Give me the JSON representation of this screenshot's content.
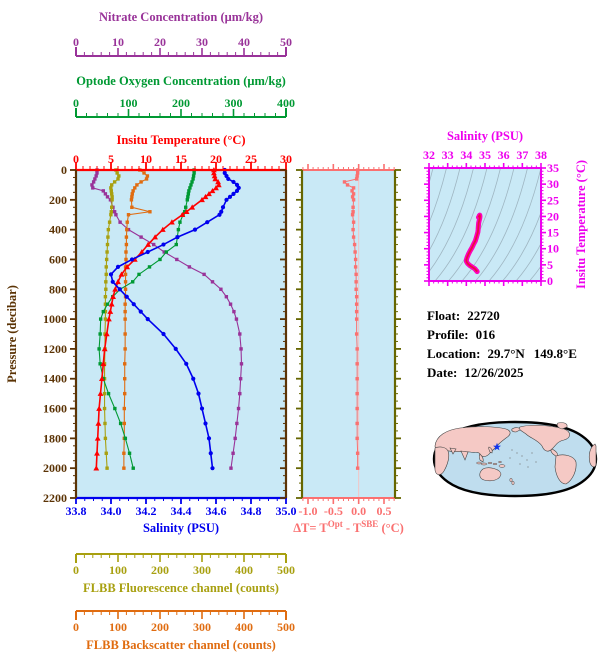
{
  "colors": {
    "plot_bg": "#C9E9F6",
    "pressure_axis": "#5B3305",
    "dt_frame": "#666600",
    "dt_zero_line": "#F2C4C4",
    "ts_axis": "#EE00EE",
    "ts_contours": "#9FB6C2",
    "ts_curve_outer": "#FF00BB",
    "ts_curve_inner": "#E8103C",
    "map_ocean": "#BFDDEE",
    "map_land": "#F5C9C5",
    "map_outline": "#000000",
    "map_star": "#1133EE"
  },
  "info_panel": {
    "lines": [
      {
        "label": "Float:",
        "value": "22720"
      },
      {
        "label": "Profile:",
        "value": "016"
      },
      {
        "label": "Location:",
        "value": "29.7°N",
        "value2": "149.8°E"
      },
      {
        "label": "Date:",
        "value": "12/26/2025"
      }
    ]
  },
  "chart_data": [
    {
      "id": "profiles",
      "type": "line",
      "ylabel": "Pressure (decibar)",
      "ylim": [
        0,
        2200
      ],
      "ytick_step": 200,
      "yminor_step": 50,
      "pressure": [
        0,
        20,
        40,
        60,
        80,
        100,
        120,
        140,
        160,
        180,
        200,
        250,
        280,
        300,
        350,
        400,
        450,
        500,
        550,
        600,
        650,
        700,
        750,
        800,
        850,
        900,
        950,
        1000,
        1100,
        1200,
        1300,
        1400,
        1500,
        1600,
        1700,
        1800,
        1900,
        2000
      ],
      "series": [
        {
          "id": "nitrate",
          "name": "Nitrate Concentration (μm/kg)",
          "color": "#993399",
          "marker": "square",
          "axis_min": 0,
          "axis_max": 50,
          "major": 10,
          "minor": 2,
          "ticks": [
            0,
            10,
            20,
            30,
            40,
            50
          ],
          "tick_labels": [
            "0",
            "10",
            "20",
            "30",
            "40",
            "50"
          ],
          "values": [
            5.0,
            5.0,
            4.8,
            4.5,
            4.2,
            3.8,
            4.0,
            6.5,
            7.0,
            7.5,
            8.2,
            8.8,
            9.2,
            9.5,
            10.5,
            12.5,
            15.5,
            18.5,
            21.0,
            24.0,
            27.0,
            30.5,
            32.5,
            34.5,
            35.8,
            36.8,
            37.6,
            38.2,
            39.0,
            39.3,
            39.4,
            39.2,
            39.0,
            38.7,
            38.3,
            37.9,
            37.4,
            36.9
          ]
        },
        {
          "id": "oxygen",
          "name": "Optode Oxygen Concentration (μm/kg)",
          "color": "#009933",
          "marker": "square",
          "axis_min": 0,
          "axis_max": 400,
          "major": 100,
          "minor": 20,
          "ticks": [
            0,
            100,
            200,
            300,
            400
          ],
          "tick_labels": [
            "0",
            "100",
            "200",
            "300",
            "400"
          ],
          "values": [
            225,
            225,
            224,
            223,
            221,
            219,
            217,
            215,
            214,
            213,
            212,
            209,
            207,
            204,
            198,
            195,
            193,
            191,
            172,
            160,
            140,
            120,
            108,
            84,
            70,
            60,
            52,
            47,
            46,
            44,
            46,
            52,
            62,
            74,
            85,
            94,
            102,
            109
          ]
        },
        {
          "id": "temperature",
          "name": "Insitu Temperature (°C)",
          "color": "#FF0000",
          "marker": "triangle",
          "axis_min": 0,
          "axis_max": 30,
          "major": 5,
          "minor": 1,
          "ticks": [
            0,
            5,
            10,
            15,
            20,
            25,
            30
          ],
          "tick_labels": [
            "0",
            "5",
            "10",
            "15",
            "20",
            "25",
            "30"
          ],
          "values": [
            19.7,
            19.7,
            19.8,
            19.9,
            20.3,
            20.4,
            20.0,
            19.5,
            19.0,
            18.5,
            18.0,
            16.6,
            15.8,
            15.2,
            13.7,
            12.4,
            11.3,
            10.3,
            9.4,
            8.4,
            7.3,
            6.5,
            6.0,
            5.6,
            5.3,
            5.1,
            4.9,
            4.7,
            4.4,
            4.1,
            3.9,
            3.7,
            3.5,
            3.3,
            3.2,
            3.1,
            3.0,
            2.9
          ]
        },
        {
          "id": "salinity",
          "name": "Salinity (PSU)",
          "color": "#0000EE",
          "marker": "circle",
          "axis_min": 33.8,
          "axis_max": 35.0,
          "major": 0.2,
          "minor": 0.05,
          "ticks": [
            33.8,
            34.0,
            34.2,
            34.4,
            34.6,
            34.8,
            35.0
          ],
          "tick_labels": [
            "33.8",
            "34.0",
            "34.2",
            "34.4",
            "34.6",
            "34.8",
            "35.0"
          ],
          "values": [
            34.65,
            34.65,
            34.66,
            34.67,
            34.7,
            34.72,
            34.73,
            34.72,
            34.7,
            34.68,
            34.66,
            34.64,
            34.63,
            34.62,
            34.55,
            34.48,
            34.38,
            34.3,
            34.21,
            34.12,
            34.04,
            34.0,
            34.01,
            34.05,
            34.09,
            34.13,
            34.17,
            34.21,
            34.3,
            34.37,
            34.43,
            34.47,
            34.5,
            34.52,
            34.54,
            34.56,
            34.57,
            34.58
          ]
        },
        {
          "id": "fluorescence",
          "name": "FLBB Fluorescence channel (counts)",
          "color": "#A8A010",
          "marker": "square",
          "axis_min": 0,
          "axis_max": 500,
          "major": 100,
          "minor": 20,
          "ticks": [
            0,
            100,
            200,
            300,
            400,
            500
          ],
          "tick_labels": [
            "0",
            "100",
            "200",
            "300",
            "400",
            "500"
          ],
          "values": [
            95,
            98,
            102,
            100,
            92,
            85,
            83,
            84,
            85,
            86,
            86,
            85,
            84,
            83,
            80,
            77,
            76,
            75,
            74,
            73,
            72,
            72,
            71,
            71,
            70,
            70,
            70,
            70,
            69,
            69,
            68,
            68,
            68,
            68,
            69,
            70,
            72,
            74
          ]
        },
        {
          "id": "backscatter",
          "name": "FLBB Backscatter channel (counts)",
          "color": "#E06C10",
          "marker": "square",
          "axis_min": 0,
          "axis_max": 500,
          "major": 100,
          "minor": 20,
          "ticks": [
            0,
            100,
            200,
            300,
            400,
            500
          ],
          "tick_labels": [
            "0",
            "100",
            "200",
            "300",
            "400",
            "500"
          ],
          "values": [
            152,
            162,
            170,
            168,
            155,
            145,
            140,
            136,
            134,
            133,
            132,
            133,
            176,
            125,
            122,
            121,
            120,
            120,
            119,
            119,
            118,
            118,
            118,
            118,
            118,
            117,
            117,
            117,
            117,
            117,
            116,
            116,
            116,
            115,
            115,
            115,
            114,
            114
          ]
        }
      ]
    },
    {
      "id": "delta_t",
      "type": "scatter",
      "xlabel_parts": [
        {
          "t": "ΔT= T"
        },
        {
          "t": "Opt",
          "sup": true
        },
        {
          "t": " - T"
        },
        {
          "t": "SBE",
          "sup": true
        },
        {
          "t": " (°C)"
        }
      ],
      "color": "#FA7070",
      "xticks": [
        -1.0,
        -0.5,
        0.0,
        0.5
      ],
      "xtick_labels": [
        "-1.0",
        "-0.5",
        "0.0",
        "0.5"
      ],
      "xminor": 0.1,
      "values": [
        -0.02,
        -0.02,
        -0.03,
        -0.04,
        -0.28,
        -0.22,
        -0.1,
        -0.13,
        -0.1,
        -0.12,
        -0.1,
        -0.11,
        -0.11,
        -0.12,
        -0.1,
        -0.11,
        -0.1,
        -0.08,
        -0.07,
        -0.06,
        -0.06,
        -0.05,
        -0.05,
        -0.05,
        -0.04,
        -0.04,
        -0.04,
        -0.04,
        -0.04,
        -0.03,
        -0.03,
        -0.03,
        -0.03,
        -0.03,
        -0.03,
        -0.03,
        -0.02,
        -0.02
      ]
    },
    {
      "id": "ts_diagram",
      "type": "line",
      "title": "Salinity (PSU)",
      "ylabel": "Insitu Temperature (°C)",
      "xlim": [
        32,
        38
      ],
      "ylim": [
        0,
        35
      ],
      "xticks": [
        32,
        33,
        34,
        35,
        36,
        37,
        38
      ],
      "xtick_labels": [
        "32",
        "33",
        "34",
        "35",
        "36",
        "37",
        "38"
      ],
      "yticks": [
        0,
        5,
        10,
        15,
        20,
        25,
        30,
        35
      ],
      "ytick_labels": [
        "0",
        "5",
        "10",
        "15",
        "20",
        "25",
        "30",
        "35"
      ],
      "xminor": 0.25,
      "yminor": 1,
      "note": "curve uses salinity series as x and temperature series as y from the profiles chart"
    }
  ],
  "map": {
    "star_name": "float-location-star"
  }
}
